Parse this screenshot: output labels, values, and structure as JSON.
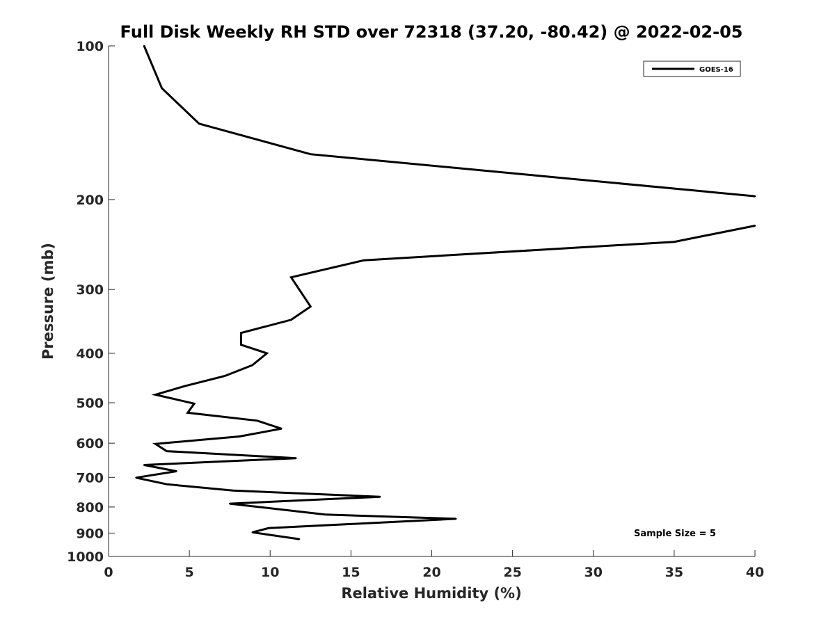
{
  "chart_data": {
    "type": "line",
    "title": "Full Disk Weekly RH STD over 72318 (37.20, -80.42) @ 2022-02-05",
    "xlabel": "Relative Humidity (%)",
    "ylabel": "Pressure (mb)",
    "xlim": [
      0,
      40
    ],
    "ylim": [
      100,
      1000
    ],
    "yscale": "log",
    "yreversed": true,
    "grid": false,
    "legend_position": "top-right",
    "x_ticks": [
      "0",
      "5",
      "10",
      "15",
      "20",
      "25",
      "30",
      "35",
      "40"
    ],
    "y_ticks": [
      "100",
      "200",
      "300",
      "400",
      "500",
      "600",
      "700",
      "800",
      "900",
      "1000"
    ],
    "annotation": "Sample Size = 5",
    "series": [
      {
        "name": "GOES-16",
        "color": "#000000",
        "points": [
          {
            "x": 2.2,
            "y": 100
          },
          {
            "x": 3.3,
            "y": 121
          },
          {
            "x": 5.6,
            "y": 142
          },
          {
            "x": 12.5,
            "y": 163
          },
          {
            "x": 40,
            "y": 197
          },
          {
            "x": null,
            "y": null
          },
          {
            "x": 40,
            "y": 225
          },
          {
            "x": 35,
            "y": 242
          },
          {
            "x": 15.8,
            "y": 263
          },
          {
            "x": 11.3,
            "y": 284
          },
          {
            "x": 12.5,
            "y": 324
          },
          {
            "x": 11.3,
            "y": 344
          },
          {
            "x": 8.2,
            "y": 365
          },
          {
            "x": 8.2,
            "y": 385
          },
          {
            "x": 9.8,
            "y": 400
          },
          {
            "x": 8.9,
            "y": 422
          },
          {
            "x": 7.2,
            "y": 443
          },
          {
            "x": 4.7,
            "y": 464
          },
          {
            "x": 2.9,
            "y": 482
          },
          {
            "x": 5.3,
            "y": 502
          },
          {
            "x": 4.9,
            "y": 523
          },
          {
            "x": 9.2,
            "y": 542
          },
          {
            "x": 10.7,
            "y": 562
          },
          {
            "x": 8.1,
            "y": 582
          },
          {
            "x": 2.9,
            "y": 602
          },
          {
            "x": 3.6,
            "y": 622
          },
          {
            "x": 11.6,
            "y": 642
          },
          {
            "x": 2.2,
            "y": 662
          },
          {
            "x": 4.2,
            "y": 681
          },
          {
            "x": 1.7,
            "y": 701
          },
          {
            "x": 3.6,
            "y": 722
          },
          {
            "x": 7.7,
            "y": 743
          },
          {
            "x": 16.8,
            "y": 764
          },
          {
            "x": 7.5,
            "y": 788
          },
          {
            "x": 13.4,
            "y": 828
          },
          {
            "x": 21.5,
            "y": 844
          },
          {
            "x": 9.9,
            "y": 880
          },
          {
            "x": 8.9,
            "y": 897
          },
          {
            "x": 11.8,
            "y": 925
          }
        ]
      }
    ]
  }
}
